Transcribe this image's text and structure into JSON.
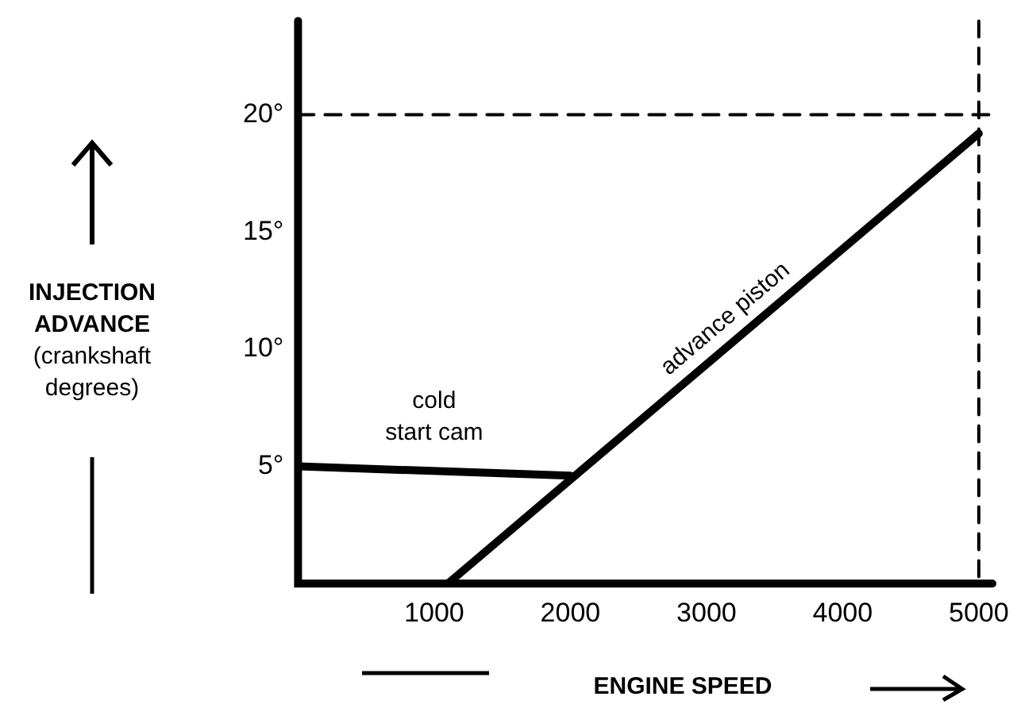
{
  "chart_data": {
    "type": "line",
    "xlabel": "ENGINE SPEED",
    "ylabel": "INJECTION ADVANCE (crankshaft degrees)",
    "xlim": [
      0,
      5100
    ],
    "ylim": [
      0,
      24
    ],
    "xticks": [
      1000,
      2000,
      3000,
      4000,
      5000
    ],
    "yticks": [
      {
        "value": 5,
        "label": "5°"
      },
      {
        "value": 10,
        "label": "10°"
      },
      {
        "value": 15,
        "label": "15°"
      },
      {
        "value": 20,
        "label": "20°"
      }
    ],
    "series": [
      {
        "name": "cold start cam",
        "color": "#000000",
        "x": [
          0,
          2000
        ],
        "values": [
          5,
          4.6
        ]
      },
      {
        "name": "advance piston",
        "color": "#000000",
        "x": [
          1100,
          5000
        ],
        "values": [
          0,
          19.2
        ]
      }
    ],
    "ref_lines": [
      {
        "axis": "y",
        "value": 20,
        "line_style": "dashed",
        "color": "#000000"
      },
      {
        "axis": "x",
        "value": 5000,
        "line_style": "dashed",
        "color": "#000000"
      }
    ],
    "grid": false,
    "legend": false,
    "marker": "none",
    "line_style": "solid"
  }
}
